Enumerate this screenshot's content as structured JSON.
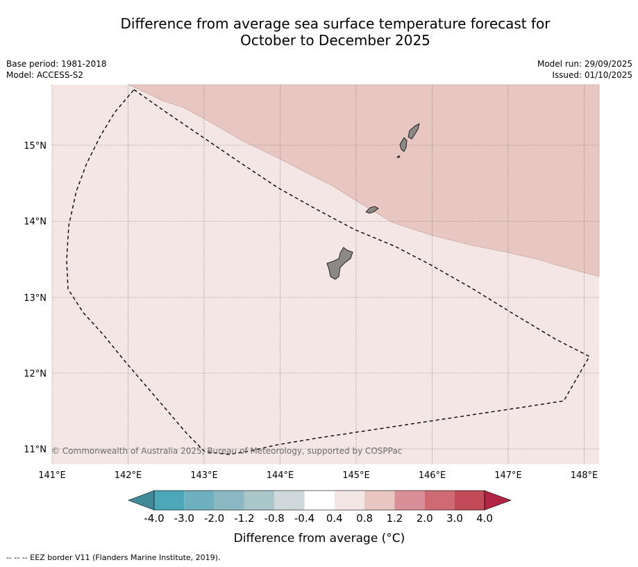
{
  "header": {
    "title_line1": "Difference from average sea surface temperature forecast for",
    "title_line2": "October to December 2025",
    "base_period": "Base period: 1981-2018",
    "model": "Model: ACCESS-S2",
    "model_run": "Model run: 29/09/2025",
    "issued": "Issued: 01/10/2025"
  },
  "map": {
    "lon_range": [
      141,
      148.2
    ],
    "lat_range": [
      10.8,
      15.8
    ],
    "lon_ticks": [
      141,
      142,
      143,
      144,
      145,
      146,
      147,
      148
    ],
    "lon_labels": [
      "141°E",
      "142°E",
      "143°E",
      "144°E",
      "145°E",
      "146°E",
      "147°E",
      "148°E"
    ],
    "lat_ticks": [
      11,
      12,
      13,
      14,
      15
    ],
    "lat_labels": [
      "11°N",
      "12°N",
      "13°N",
      "14°N",
      "15°N"
    ],
    "background_category": "0.4 to 0.8",
    "background_color": "#f4e6e4",
    "warm_region_category": "0.8 to 1.2",
    "warm_region_color": "#e8c7c2",
    "copyright": "© Commonwealth of Australia 2025, Bureau of Meteorology, supported by COSPPac"
  },
  "colorbar": {
    "title": "Difference from average (°C)",
    "tick_labels": [
      "-4.0",
      "-3.0",
      "-2.0",
      "-1.2",
      "-0.8",
      "-0.4",
      "0.4",
      "0.8",
      "1.2",
      "2.0",
      "3.0",
      "4.0"
    ],
    "colors": [
      "#4ca8b9",
      "#6eb0bf",
      "#8cb8c3",
      "#a9c6ca",
      "#cfd8db",
      "#ffffff",
      "#f4e6e4",
      "#e8c7c2",
      "#d98f97",
      "#cd6a73",
      "#c24b5a"
    ],
    "under_color": "#3f8a96",
    "over_color": "#b22444"
  },
  "legend": {
    "eez_text": "--  --  -- EEZ border V11 (Flanders Marine Institute, 2019)."
  }
}
